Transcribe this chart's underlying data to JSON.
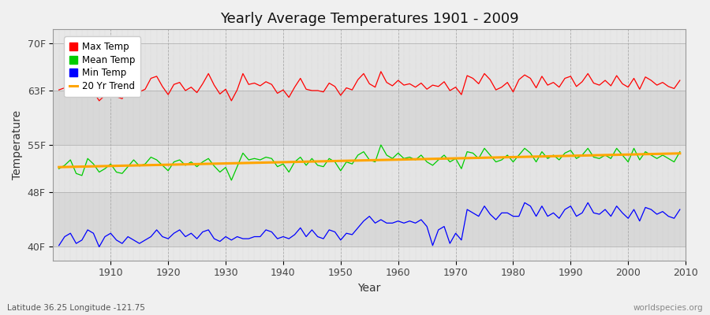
{
  "title": "Yearly Average Temperatures 1901 - 2009",
  "xlabel": "Year",
  "ylabel": "Temperature",
  "start_year": 1901,
  "end_year": 2009,
  "yticks": [
    40,
    48,
    55,
    63,
    70
  ],
  "ylabels": [
    "40F",
    "48F",
    "55F",
    "63F",
    "70F"
  ],
  "ylim": [
    38,
    72
  ],
  "xlim": [
    1900,
    2010
  ],
  "figure_bg": "#f0f0f0",
  "plot_bg": "#e8e8e8",
  "band_colors": [
    "#e0e0e0",
    "#e8e8e8"
  ],
  "grid_color": "#cccccc",
  "legend_entries": [
    "Max Temp",
    "Mean Temp",
    "Min Temp",
    "20 Yr Trend"
  ],
  "legend_colors": [
    "#ff0000",
    "#00cc00",
    "#0000ff",
    "#ffa500"
  ],
  "max_temp": [
    63.1,
    63.4,
    63.8,
    62.1,
    62.2,
    63.5,
    62.8,
    61.5,
    62.3,
    63.0,
    62.1,
    61.8,
    63.5,
    63.8,
    62.8,
    63.2,
    64.8,
    65.1,
    63.6,
    62.4,
    63.9,
    64.2,
    63.0,
    63.5,
    62.7,
    64.0,
    65.5,
    63.8,
    62.5,
    63.2,
    61.5,
    63.1,
    65.5,
    63.9,
    64.1,
    63.7,
    64.3,
    63.9,
    62.6,
    63.1,
    62.0,
    63.5,
    64.8,
    63.2,
    63.0,
    63.0,
    62.8,
    64.1,
    63.6,
    62.3,
    63.4,
    63.1,
    64.6,
    65.5,
    64.0,
    63.5,
    65.8,
    64.2,
    63.7,
    64.5,
    63.8,
    64.0,
    63.5,
    64.1,
    63.2,
    63.8,
    63.6,
    64.3,
    63.0,
    63.5,
    62.4,
    65.2,
    64.8,
    64.0,
    65.5,
    64.6,
    63.1,
    63.5,
    64.2,
    62.8,
    64.6,
    65.3,
    64.8,
    63.4,
    65.1,
    63.8,
    64.2,
    63.5,
    64.8,
    65.1,
    63.6,
    64.3,
    65.5,
    64.1,
    63.8,
    64.5,
    63.7,
    65.2,
    64.0,
    63.5,
    64.8,
    63.2,
    65.0,
    64.5,
    63.8,
    64.2,
    63.6,
    63.3,
    64.5
  ],
  "mean_temp": [
    51.5,
    52.0,
    52.8,
    50.8,
    50.5,
    53.0,
    52.2,
    51.0,
    51.5,
    52.2,
    51.0,
    50.8,
    51.8,
    52.8,
    51.9,
    52.2,
    53.2,
    52.8,
    52.0,
    51.2,
    52.5,
    52.8,
    52.0,
    52.5,
    51.8,
    52.5,
    53.0,
    51.9,
    51.0,
    51.7,
    49.8,
    51.8,
    53.8,
    52.8,
    53.0,
    52.8,
    53.2,
    53.0,
    51.8,
    52.2,
    51.0,
    52.5,
    53.2,
    52.0,
    53.0,
    52.0,
    51.8,
    53.0,
    52.5,
    51.2,
    52.5,
    52.2,
    53.5,
    54.0,
    52.8,
    52.5,
    55.0,
    53.5,
    53.0,
    53.8,
    53.0,
    53.2,
    52.8,
    53.5,
    52.5,
    52.0,
    52.8,
    53.5,
    52.5,
    53.0,
    51.5,
    54.0,
    53.8,
    53.0,
    54.5,
    53.5,
    52.5,
    52.8,
    53.5,
    52.5,
    53.5,
    54.5,
    53.8,
    52.5,
    54.0,
    53.0,
    53.5,
    52.8,
    53.8,
    54.2,
    53.0,
    53.5,
    54.5,
    53.2,
    53.0,
    53.5,
    53.0,
    54.5,
    53.5,
    52.5,
    54.5,
    52.8,
    54.0,
    53.5,
    53.0,
    53.5,
    53.0,
    52.5,
    54.0
  ],
  "min_temp": [
    40.2,
    41.5,
    42.0,
    40.5,
    41.0,
    42.5,
    42.0,
    40.0,
    41.5,
    42.0,
    41.0,
    40.5,
    41.5,
    41.0,
    40.5,
    41.0,
    41.5,
    42.5,
    41.5,
    41.2,
    42.0,
    42.5,
    41.5,
    42.0,
    41.2,
    42.2,
    42.5,
    41.2,
    40.8,
    41.5,
    41.0,
    41.5,
    41.2,
    41.2,
    41.5,
    41.5,
    42.5,
    42.2,
    41.2,
    41.5,
    41.2,
    41.8,
    42.8,
    41.5,
    42.5,
    41.5,
    41.2,
    42.5,
    42.2,
    41.0,
    42.0,
    41.8,
    42.8,
    43.8,
    44.5,
    43.5,
    44.0,
    43.5,
    43.5,
    43.8,
    43.5,
    43.8,
    43.5,
    44.0,
    43.0,
    40.2,
    42.5,
    43.0,
    40.5,
    42.0,
    41.0,
    45.5,
    45.0,
    44.5,
    46.0,
    44.8,
    44.0,
    45.0,
    45.0,
    44.5,
    44.5,
    46.5,
    46.0,
    44.5,
    46.0,
    44.5,
    45.0,
    44.2,
    45.5,
    46.0,
    44.5,
    45.0,
    46.5,
    45.0,
    44.8,
    45.5,
    44.5,
    46.0,
    45.0,
    44.2,
    45.5,
    43.8,
    45.8,
    45.5,
    44.8,
    45.2,
    44.5,
    44.2,
    45.5
  ],
  "footer_left": "Latitude 36.25 Longitude -121.75",
  "footer_right": "worldspecies.org"
}
